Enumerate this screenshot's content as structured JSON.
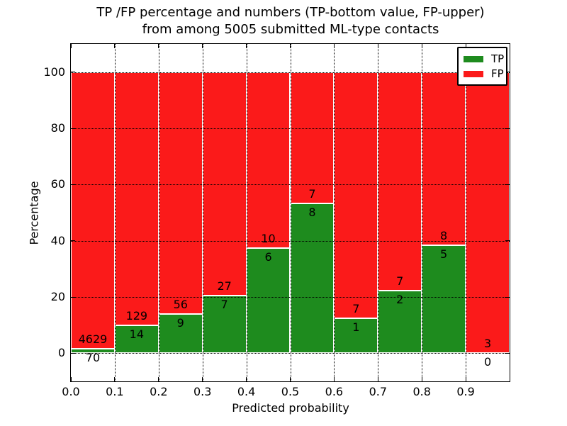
{
  "chart_data": {
    "type": "bar",
    "subtype": "stacked-percentage-histogram",
    "title": "TP /FP percentage and numbers (TP-bottom value, FP-upper)",
    "subtitle": "from among 5005 submitted ML-type contacts",
    "xlabel": "Predicted probability",
    "ylabel": "Percentage",
    "total_contacts": 5005,
    "xlim": [
      0.0,
      1.0
    ],
    "ylim": [
      -10,
      110
    ],
    "xticks": [
      "0.0",
      "0.1",
      "0.2",
      "0.3",
      "0.4",
      "0.5",
      "0.6",
      "0.7",
      "0.8",
      "0.9"
    ],
    "xtick_values": [
      0.0,
      0.1,
      0.2,
      0.3,
      0.4,
      0.5,
      0.6,
      0.7,
      0.8,
      0.9
    ],
    "yticks": [
      0,
      20,
      40,
      60,
      80,
      100
    ],
    "grid": "dotted-both-axes",
    "bin_width": 0.1,
    "categories": [
      "0.0-0.1",
      "0.1-0.2",
      "0.2-0.3",
      "0.3-0.4",
      "0.4-0.5",
      "0.5-0.6",
      "0.6-0.7",
      "0.7-0.8",
      "0.8-0.9",
      "0.9-1.0"
    ],
    "series": [
      {
        "name": "TP",
        "color": "#1e8b1e",
        "values": [
          70,
          14,
          9,
          7,
          6,
          8,
          1,
          2,
          5,
          0
        ]
      },
      {
        "name": "FP",
        "color": "#fb1a1a",
        "values": [
          4629,
          129,
          56,
          27,
          10,
          7,
          7,
          7,
          8,
          3
        ]
      }
    ],
    "tp_percent": [
      1.5,
      9.8,
      13.8,
      20.6,
      37.5,
      53.3,
      12.5,
      22.2,
      38.5,
      0.0
    ],
    "bar_edge_color": "#ffffff",
    "legend": {
      "position": "upper-right",
      "entries": [
        {
          "label": "TP",
          "color": "#1e8b1e"
        },
        {
          "label": "FP",
          "color": "#fb1a1a"
        }
      ]
    }
  }
}
